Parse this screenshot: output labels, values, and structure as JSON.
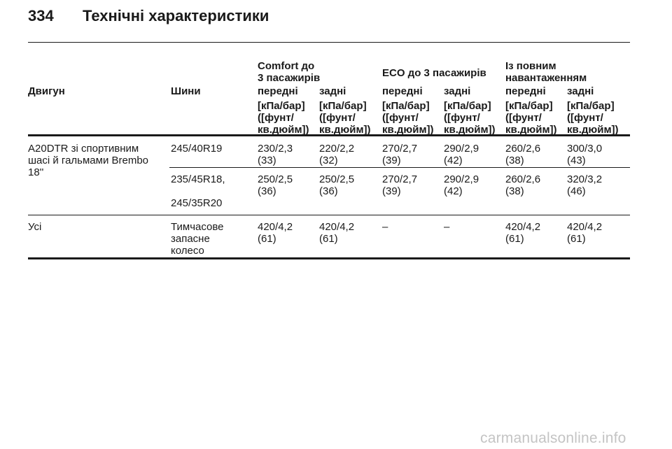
{
  "header": {
    "page_number": "334",
    "title": "Технічні характеристики"
  },
  "table": {
    "group_headers": [
      "Comfort до\n3 пасажирів",
      "ECO до 3 пасажирів",
      "Із повним\nнавантаженням"
    ],
    "column_headers": [
      "Двигун",
      "Шини",
      "передні",
      "задні",
      "передні",
      "задні",
      "передні",
      "задні"
    ],
    "unit_label": "[кПа/бар]\n([фунт/\nкв.дюйм])",
    "engine_1": "A20DTR зі спортивним\nшасі й гальмами Brembo\n18''",
    "row_1": {
      "tire": "245/40R19",
      "values": [
        "230/2,3\n(33)",
        "220/2,2\n(32)",
        "270/2,7\n(39)",
        "290/2,9\n(42)",
        "260/2,6\n(38)",
        "300/3,0\n(43)"
      ]
    },
    "row_2": {
      "tire": "235/45R18,\n\n245/35R20",
      "values": [
        "250/2,5\n(36)",
        "250/2,5\n(36)",
        "270/2,7\n(39)",
        "290/2,9\n(42)",
        "260/2,6\n(38)",
        "320/3,2\n(46)"
      ]
    },
    "row_3": {
      "engine": "Усі",
      "tire": "Тимчасове\nзапасне\nколесо",
      "values": [
        "420/4,2\n(61)",
        "420/4,2\n(61)",
        "–",
        "–",
        "420/4,2\n(61)",
        "420/4,2\n(61)"
      ]
    }
  },
  "watermark": "carmanualsonline.info"
}
